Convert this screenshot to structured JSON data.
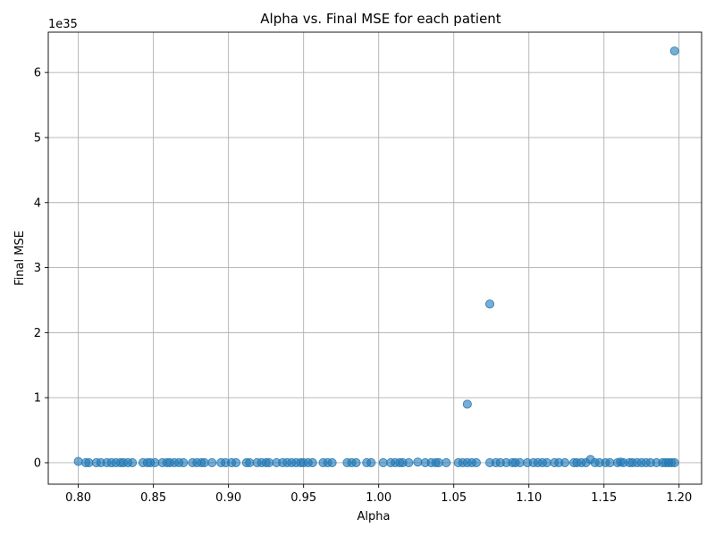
{
  "chart_data": {
    "type": "scatter",
    "title": "Alpha vs. Final MSE for each patient",
    "xlabel": "Alpha",
    "ylabel": "Final MSE",
    "y_offset_text": "1e35",
    "xlim": [
      0.78,
      1.215
    ],
    "ylim": [
      -0.33,
      6.62
    ],
    "x_ticks": [
      0.8,
      0.85,
      0.9,
      0.95,
      1.0,
      1.05,
      1.1,
      1.15,
      1.2
    ],
    "x_tick_labels": [
      "0.80",
      "0.85",
      "0.90",
      "0.95",
      "1.00",
      "1.05",
      "1.10",
      "1.15",
      "1.20"
    ],
    "y_ticks": [
      0,
      1,
      2,
      3,
      4,
      5,
      6
    ],
    "y_tick_labels": [
      "0",
      "1",
      "2",
      "3",
      "4",
      "5",
      "6"
    ],
    "grid": true,
    "marker_color": "#1f77b4",
    "marker_alpha": 0.6,
    "points": [
      {
        "x": 0.8,
        "y": 0.02
      },
      {
        "x": 0.805,
        "y": 0.0
      },
      {
        "x": 0.807,
        "y": 0.0
      },
      {
        "x": 0.812,
        "y": 0.0
      },
      {
        "x": 0.815,
        "y": 0.0
      },
      {
        "x": 0.819,
        "y": 0.0
      },
      {
        "x": 0.822,
        "y": 0.0
      },
      {
        "x": 0.825,
        "y": 0.0
      },
      {
        "x": 0.828,
        "y": 0.0
      },
      {
        "x": 0.83,
        "y": 0.0
      },
      {
        "x": 0.833,
        "y": 0.0
      },
      {
        "x": 0.836,
        "y": 0.0
      },
      {
        "x": 0.843,
        "y": 0.0
      },
      {
        "x": 0.846,
        "y": 0.0
      },
      {
        "x": 0.848,
        "y": 0.0
      },
      {
        "x": 0.851,
        "y": 0.0
      },
      {
        "x": 0.856,
        "y": 0.0
      },
      {
        "x": 0.859,
        "y": 0.0
      },
      {
        "x": 0.861,
        "y": 0.0
      },
      {
        "x": 0.864,
        "y": 0.0
      },
      {
        "x": 0.867,
        "y": 0.0
      },
      {
        "x": 0.87,
        "y": 0.0
      },
      {
        "x": 0.876,
        "y": 0.0
      },
      {
        "x": 0.879,
        "y": 0.0
      },
      {
        "x": 0.882,
        "y": 0.0
      },
      {
        "x": 0.884,
        "y": 0.0
      },
      {
        "x": 0.889,
        "y": 0.0
      },
      {
        "x": 0.895,
        "y": 0.0
      },
      {
        "x": 0.898,
        "y": 0.0
      },
      {
        "x": 0.902,
        "y": 0.0
      },
      {
        "x": 0.905,
        "y": 0.0
      },
      {
        "x": 0.912,
        "y": 0.0
      },
      {
        "x": 0.914,
        "y": 0.0
      },
      {
        "x": 0.919,
        "y": 0.0
      },
      {
        "x": 0.922,
        "y": 0.0
      },
      {
        "x": 0.925,
        "y": 0.0
      },
      {
        "x": 0.927,
        "y": 0.0
      },
      {
        "x": 0.932,
        "y": 0.0
      },
      {
        "x": 0.936,
        "y": 0.0
      },
      {
        "x": 0.939,
        "y": 0.0
      },
      {
        "x": 0.942,
        "y": 0.0
      },
      {
        "x": 0.945,
        "y": 0.0
      },
      {
        "x": 0.948,
        "y": 0.0
      },
      {
        "x": 0.95,
        "y": 0.0
      },
      {
        "x": 0.953,
        "y": 0.0
      },
      {
        "x": 0.956,
        "y": 0.0
      },
      {
        "x": 0.963,
        "y": 0.0
      },
      {
        "x": 0.966,
        "y": 0.0
      },
      {
        "x": 0.969,
        "y": 0.0
      },
      {
        "x": 0.979,
        "y": 0.0
      },
      {
        "x": 0.982,
        "y": 0.0
      },
      {
        "x": 0.985,
        "y": 0.0
      },
      {
        "x": 0.992,
        "y": 0.0
      },
      {
        "x": 0.995,
        "y": 0.0
      },
      {
        "x": 1.003,
        "y": 0.0
      },
      {
        "x": 1.008,
        "y": 0.0
      },
      {
        "x": 1.011,
        "y": 0.0
      },
      {
        "x": 1.014,
        "y": 0.0
      },
      {
        "x": 1.016,
        "y": 0.0
      },
      {
        "x": 1.02,
        "y": 0.0
      },
      {
        "x": 1.026,
        "y": 0.01
      },
      {
        "x": 1.031,
        "y": 0.0
      },
      {
        "x": 1.035,
        "y": 0.0
      },
      {
        "x": 1.038,
        "y": 0.0
      },
      {
        "x": 1.04,
        "y": 0.0
      },
      {
        "x": 1.045,
        "y": 0.0
      },
      {
        "x": 1.053,
        "y": 0.0
      },
      {
        "x": 1.056,
        "y": 0.0
      },
      {
        "x": 1.059,
        "y": 0.0
      },
      {
        "x": 1.059,
        "y": 0.9
      },
      {
        "x": 1.062,
        "y": 0.0
      },
      {
        "x": 1.065,
        "y": 0.0
      },
      {
        "x": 1.074,
        "y": 0.0
      },
      {
        "x": 1.074,
        "y": 2.44
      },
      {
        "x": 1.078,
        "y": 0.0
      },
      {
        "x": 1.081,
        "y": 0.0
      },
      {
        "x": 1.085,
        "y": 0.0
      },
      {
        "x": 1.089,
        "y": 0.0
      },
      {
        "x": 1.091,
        "y": 0.0
      },
      {
        "x": 1.094,
        "y": 0.0
      },
      {
        "x": 1.099,
        "y": 0.0
      },
      {
        "x": 1.103,
        "y": 0.0
      },
      {
        "x": 1.106,
        "y": 0.0
      },
      {
        "x": 1.109,
        "y": 0.0
      },
      {
        "x": 1.112,
        "y": 0.0
      },
      {
        "x": 1.117,
        "y": 0.0
      },
      {
        "x": 1.12,
        "y": 0.0
      },
      {
        "x": 1.124,
        "y": 0.0
      },
      {
        "x": 1.13,
        "y": 0.0
      },
      {
        "x": 1.132,
        "y": 0.0
      },
      {
        "x": 1.135,
        "y": 0.0
      },
      {
        "x": 1.138,
        "y": 0.0
      },
      {
        "x": 1.141,
        "y": 0.05
      },
      {
        "x": 1.144,
        "y": 0.0
      },
      {
        "x": 1.147,
        "y": 0.0
      },
      {
        "x": 1.151,
        "y": 0.0
      },
      {
        "x": 1.154,
        "y": 0.0
      },
      {
        "x": 1.159,
        "y": 0.0
      },
      {
        "x": 1.161,
        "y": 0.01
      },
      {
        "x": 1.163,
        "y": 0.0
      },
      {
        "x": 1.167,
        "y": 0.0
      },
      {
        "x": 1.169,
        "y": 0.0
      },
      {
        "x": 1.172,
        "y": 0.0
      },
      {
        "x": 1.175,
        "y": 0.0
      },
      {
        "x": 1.178,
        "y": 0.0
      },
      {
        "x": 1.181,
        "y": 0.0
      },
      {
        "x": 1.185,
        "y": 0.0
      },
      {
        "x": 1.189,
        "y": 0.0
      },
      {
        "x": 1.191,
        "y": 0.0
      },
      {
        "x": 1.193,
        "y": 0.0
      },
      {
        "x": 1.195,
        "y": 0.0
      },
      {
        "x": 1.197,
        "y": 0.0
      },
      {
        "x": 1.197,
        "y": 6.33
      }
    ]
  }
}
